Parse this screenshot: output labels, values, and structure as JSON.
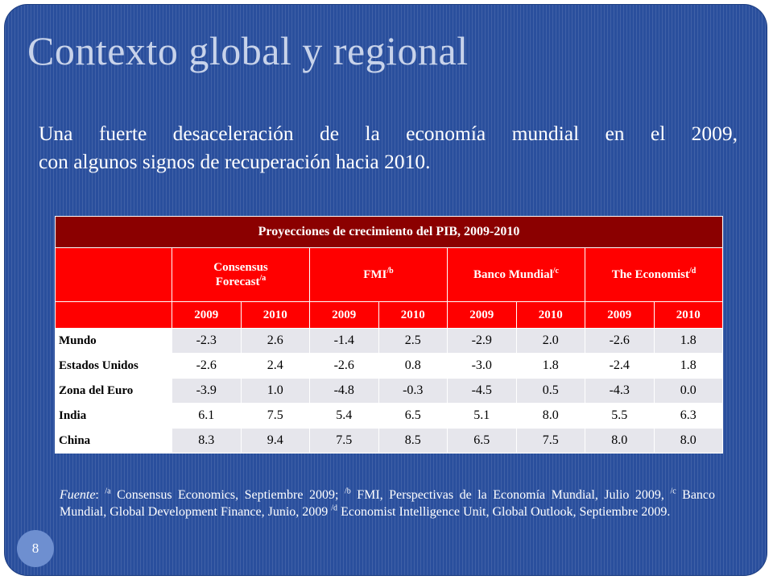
{
  "title": "Contexto global y regional",
  "subtitle": {
    "line1": "Una fuerte desaceleración de la economía mundial en el 2009,",
    "line2": "con algunos signos de recuperación hacia 2010."
  },
  "table": {
    "caption": "Proyecciones de crecimiento del PIB, 2009-2010",
    "sources": [
      {
        "name_line1": "Consensus",
        "name_line2": "Forecast",
        "sup": "/a"
      },
      {
        "name": "FMI",
        "sup": "/b"
      },
      {
        "name": "Banco Mundial",
        "sup": "/c"
      },
      {
        "name": "The Economist",
        "sup": "/d"
      }
    ],
    "years": [
      "2009",
      "2010",
      "2009",
      "2010",
      "2009",
      "2010",
      "2009",
      "2010"
    ],
    "rows": [
      {
        "label": "Mundo",
        "values": [
          "-2.3",
          "2.6",
          "-1.4",
          "2.5",
          "-2.9",
          "2.0",
          "-2.6",
          "1.8"
        ]
      },
      {
        "label": "Estados Unidos",
        "values": [
          "-2.6",
          "2.4",
          "-2.6",
          "0.8",
          "-3.0",
          "1.8",
          "-2.4",
          "1.8"
        ]
      },
      {
        "label": "Zona del Euro",
        "values": [
          "-3.9",
          "1.0",
          "-4.8",
          "-0.3",
          "-4.5",
          "0.5",
          "-4.3",
          "0.0"
        ]
      },
      {
        "label": "India",
        "values": [
          "6.1",
          "7.5",
          "5.4",
          "6.5",
          "5.1",
          "8.0",
          "5.5",
          "6.3"
        ]
      },
      {
        "label": "China",
        "values": [
          "8.3",
          "9.4",
          "7.5",
          "8.5",
          "6.5",
          "7.5",
          "8.0",
          "8.0"
        ]
      }
    ]
  },
  "footnote": {
    "label": "Fuente",
    "colon": ": ",
    "sup_a": "/a",
    "text_a": " Consensus Economics, Septiembre 2009; ",
    "sup_b": "/b",
    "text_b": " FMI, Perspectivas de la Economía Mundial, Julio 2009, ",
    "sup_c": "/c",
    "text_c": " Banco Mundial, Global Development Finance, Junio, 2009 ",
    "sup_d": "/d",
    "text_d": " Economist Intelligence Unit, Global Outlook, Septiembre 2009."
  },
  "page_number": "8",
  "colors": {
    "background": "#2a4f9d",
    "header_dark_red": "#8b0000",
    "header_red": "#ff0000",
    "row_shade": "#e6e6ec"
  }
}
